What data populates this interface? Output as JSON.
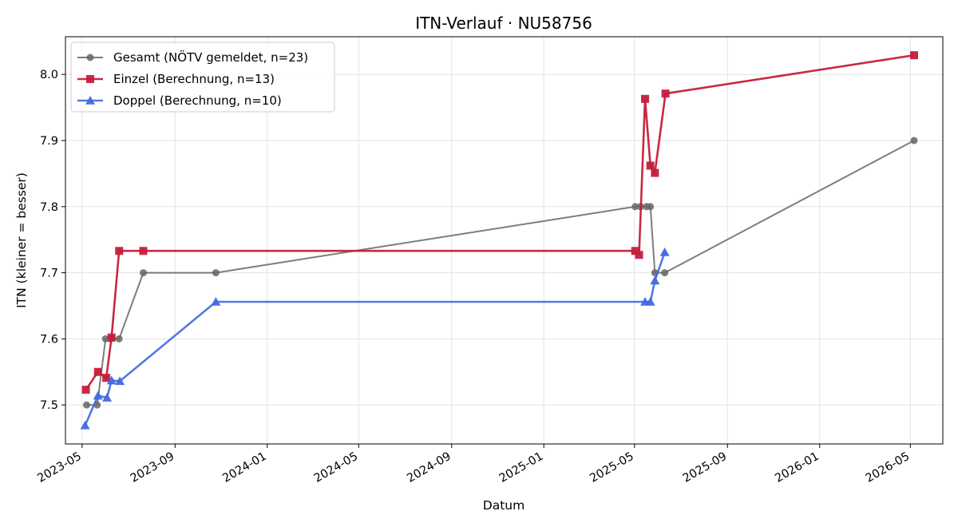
{
  "chart_data": {
    "type": "line",
    "title": "ITN-Verlauf · NU58756",
    "xlabel": "Datum",
    "ylabel": "ITN  (kleiner = besser)",
    "x_axis_type": "date",
    "xlim": [
      "2023-04-09",
      "2026-06-13"
    ],
    "ylim": [
      7.441,
      8.057
    ],
    "x_ticks": [
      "2023-05",
      "2023-09",
      "2024-01",
      "2024-05",
      "2024-09",
      "2025-01",
      "2025-05",
      "2025-09",
      "2026-01",
      "2026-05"
    ],
    "y_ticks": [
      "7.5",
      "7.6",
      "7.7",
      "7.8",
      "7.9",
      "8.0"
    ],
    "grid": true,
    "legend_position": "upper-left",
    "series": [
      {
        "name": "Gesamt (NÖTV gemeldet, n=23)",
        "color": "#666666",
        "marker": "circle",
        "points": [
          {
            "x": "2023-05-07",
            "y": 7.5
          },
          {
            "x": "2023-05-21",
            "y": 7.5
          },
          {
            "x": "2023-06-01",
            "y": 7.6
          },
          {
            "x": "2023-06-08",
            "y": 7.6
          },
          {
            "x": "2023-06-19",
            "y": 7.6
          },
          {
            "x": "2023-07-21",
            "y": 7.7
          },
          {
            "x": "2023-10-25",
            "y": 7.7
          },
          {
            "x": "2025-05-02",
            "y": 7.8
          },
          {
            "x": "2025-05-09",
            "y": 7.8
          },
          {
            "x": "2025-05-17",
            "y": 7.8
          },
          {
            "x": "2025-05-22",
            "y": 7.8
          },
          {
            "x": "2025-05-28",
            "y": 7.7
          },
          {
            "x": "2025-06-10",
            "y": 7.7
          },
          {
            "x": "2026-05-06",
            "y": 7.9
          }
        ]
      },
      {
        "name": "Einzel (Berechnung, n=13)",
        "color": "#c41e3a",
        "marker": "square",
        "points": [
          {
            "x": "2023-05-06",
            "y": 7.523
          },
          {
            "x": "2023-05-22",
            "y": 7.55
          },
          {
            "x": "2023-06-02",
            "y": 7.541
          },
          {
            "x": "2023-06-09",
            "y": 7.602
          },
          {
            "x": "2023-06-19",
            "y": 7.733
          },
          {
            "x": "2023-07-21",
            "y": 7.733
          },
          {
            "x": "2025-05-02",
            "y": 7.733
          },
          {
            "x": "2025-05-07",
            "y": 7.727
          },
          {
            "x": "2025-05-15",
            "y": 7.963
          },
          {
            "x": "2025-05-22",
            "y": 7.862
          },
          {
            "x": "2025-05-28",
            "y": 7.851
          },
          {
            "x": "2025-06-11",
            "y": 7.971
          },
          {
            "x": "2026-05-06",
            "y": 8.029
          }
        ]
      },
      {
        "name": "Doppel (Berechnung, n=10)",
        "color": "#4169e1",
        "marker": "triangle",
        "points": [
          {
            "x": "2023-05-05",
            "y": 7.469
          },
          {
            "x": "2023-05-22",
            "y": 7.514
          },
          {
            "x": "2023-06-03",
            "y": 7.511
          },
          {
            "x": "2023-06-09",
            "y": 7.537
          },
          {
            "x": "2023-06-20",
            "y": 7.536
          },
          {
            "x": "2023-10-25",
            "y": 7.656
          },
          {
            "x": "2025-05-15",
            "y": 7.656
          },
          {
            "x": "2025-05-22",
            "y": 7.656
          },
          {
            "x": "2025-05-28",
            "y": 7.688
          },
          {
            "x": "2025-06-10",
            "y": 7.731
          }
        ]
      }
    ]
  }
}
